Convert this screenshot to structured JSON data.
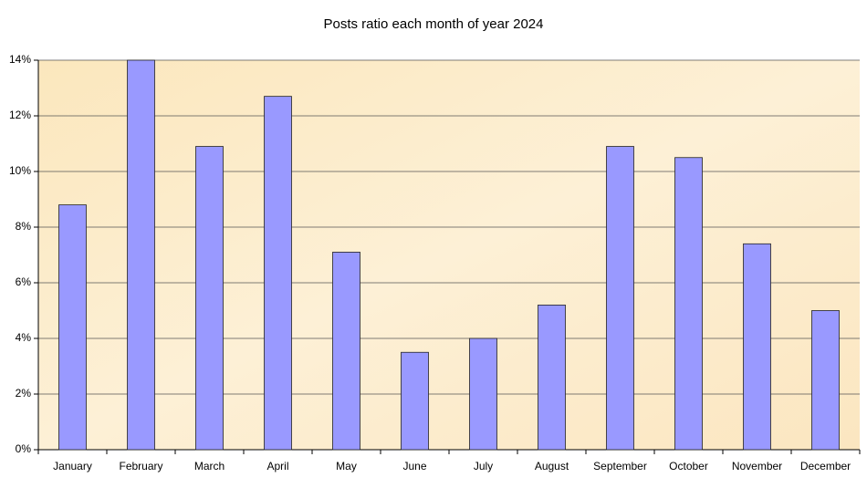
{
  "chart_data": {
    "type": "bar",
    "title": "Posts ratio each month of year 2024",
    "categories": [
      "January",
      "February",
      "March",
      "April",
      "May",
      "June",
      "July",
      "August",
      "September",
      "October",
      "November",
      "December"
    ],
    "values": [
      8.8,
      14.0,
      10.9,
      12.7,
      7.1,
      3.5,
      4.0,
      5.2,
      10.9,
      10.5,
      7.4,
      5.0
    ],
    "color": "#9999ff",
    "ylim": [
      0,
      14
    ],
    "yticks": [
      {
        "value": 0,
        "label": "0%"
      },
      {
        "value": 2,
        "label": "2%"
      },
      {
        "value": 4,
        "label": "4%"
      },
      {
        "value": 6,
        "label": "6%"
      },
      {
        "value": 8,
        "label": "8%"
      },
      {
        "value": 10,
        "label": "10%"
      },
      {
        "value": 12,
        "label": "12%"
      },
      {
        "value": 14,
        "label": "14%"
      }
    ],
    "grid": true
  }
}
